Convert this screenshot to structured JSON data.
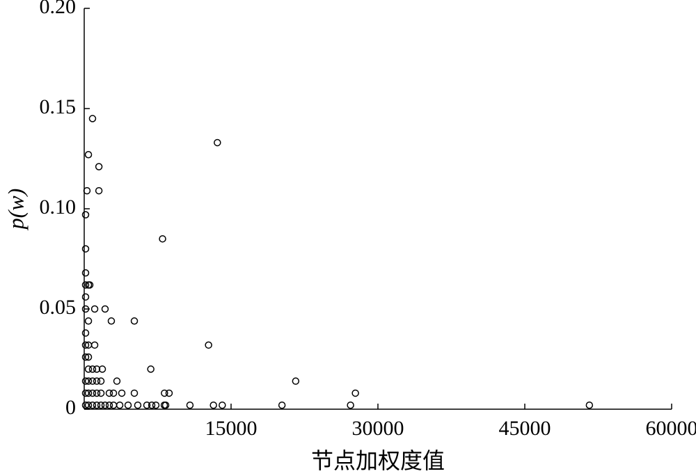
{
  "chart_data": {
    "type": "scatter",
    "x_label": "节点加权度值",
    "y_label": "p(w)",
    "xlim": [
      0,
      60000
    ],
    "xticks": [
      15000,
      30000,
      45000,
      60000
    ],
    "ylim": [
      0,
      0.2
    ],
    "yticks": [
      0,
      0.05,
      {
        "value": 0.1,
        "label": "0.10"
      },
      0.15,
      {
        "value": 0.2,
        "label": "0.20"
      }
    ],
    "color": "#000000",
    "x": [
      850,
      13600,
      430,
      1500,
      280,
      1500,
      140,
      8000,
      140,
      140,
      140,
      430,
      570,
      140,
      140,
      1070,
      2130,
      430,
      2770,
      5120,
      140,
      140,
      430,
      1070,
      12700,
      140,
      430,
      430,
      850,
      1280,
      1850,
      6800,
      140,
      430,
      850,
      1280,
      1710,
      3340,
      21600,
      140,
      430,
      850,
      1280,
      1710,
      2560,
      2990,
      3840,
      5120,
      8200,
      8670,
      27700,
      140,
      430,
      850,
      1280,
      1710,
      2130,
      2560,
      2990,
      3630,
      4480,
      5470,
      6400,
      6900,
      7320,
      8180,
      8320,
      10800,
      13200,
      14100,
      20200,
      27200,
      51600
    ],
    "y": [
      0.145,
      0.133,
      0.127,
      0.121,
      0.109,
      0.109,
      0.097,
      0.085,
      0.08,
      0.068,
      0.062,
      0.062,
      0.062,
      0.056,
      0.05,
      0.05,
      0.05,
      0.044,
      0.044,
      0.044,
      0.038,
      0.032,
      0.032,
      0.032,
      0.032,
      0.026,
      0.026,
      0.02,
      0.02,
      0.02,
      0.02,
      0.02,
      0.014,
      0.014,
      0.014,
      0.014,
      0.014,
      0.014,
      0.014,
      0.008,
      0.008,
      0.008,
      0.008,
      0.008,
      0.008,
      0.008,
      0.008,
      0.008,
      0.008,
      0.008,
      0.008,
      0.002,
      0.002,
      0.002,
      0.002,
      0.002,
      0.002,
      0.002,
      0.002,
      0.002,
      0.002,
      0.002,
      0.002,
      0.002,
      0.002,
      0.002,
      0.002,
      0.002,
      0.002,
      0.002,
      0.002,
      0.002,
      0.002
    ]
  }
}
